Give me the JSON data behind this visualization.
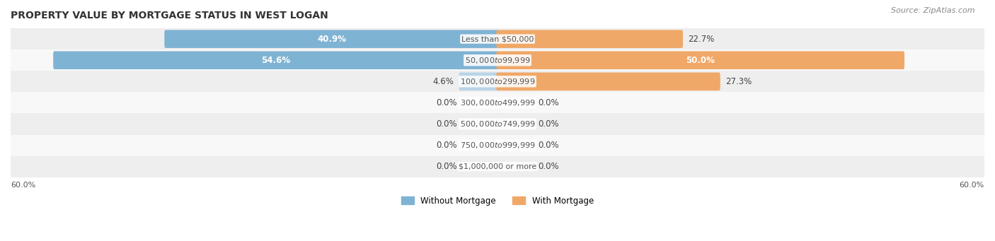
{
  "title": "PROPERTY VALUE BY MORTGAGE STATUS IN WEST LOGAN",
  "source": "Source: ZipAtlas.com",
  "categories": [
    "Less than $50,000",
    "$50,000 to $99,999",
    "$100,000 to $299,999",
    "$300,000 to $499,999",
    "$500,000 to $749,999",
    "$750,000 to $999,999",
    "$1,000,000 or more"
  ],
  "without_mortgage": [
    40.9,
    54.6,
    4.6,
    0.0,
    0.0,
    0.0,
    0.0
  ],
  "with_mortgage": [
    22.7,
    50.0,
    27.3,
    0.0,
    0.0,
    0.0,
    0.0
  ],
  "max_val": 60.0,
  "color_without": "#7fb3d3",
  "color_with": "#f0a868",
  "color_without_light": "#b8d4e8",
  "color_with_light": "#f5c99a",
  "bar_height": 0.55,
  "label_fontsize": 8.5,
  "title_fontsize": 10,
  "source_fontsize": 8,
  "legend_fontsize": 8.5,
  "axis_label_fontsize": 8,
  "x_axis_label_left": "60.0%",
  "x_axis_label_right": "60.0%"
}
